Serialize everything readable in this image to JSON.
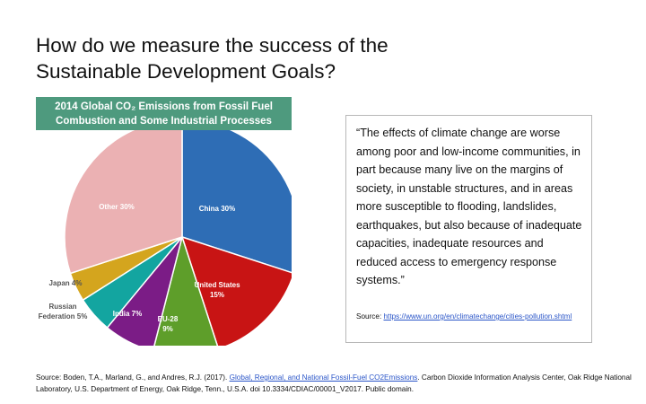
{
  "slide": {
    "title_line1": "How do we measure the success of the",
    "title_line2": "Sustainable Development Goals?"
  },
  "chart_data": {
    "type": "pie",
    "title_line1": "2014 Global CO₂ Emissions from Fossil Fuel",
    "title_line2": "Combustion and Some Industrial Processes",
    "header_color": "#4e9a7e",
    "slices": [
      {
        "label": "China",
        "value": 30,
        "text": "China 30%",
        "color": "#2e6db5"
      },
      {
        "label": "United States",
        "value": 15,
        "text": "United States 15%",
        "color": "#c81414"
      },
      {
        "label": "EU-28",
        "value": 9,
        "text": "EU-28 9%",
        "color": "#5e9e2a"
      },
      {
        "label": "India",
        "value": 7,
        "text": "India 7%",
        "color": "#7b1c86"
      },
      {
        "label": "Russian Federation",
        "value": 5,
        "text": "Russian Federation 5%",
        "color": "#13a5a0"
      },
      {
        "label": "Japan",
        "value": 4,
        "text": "Japan 4%",
        "color": "#d4a51e"
      },
      {
        "label": "Other",
        "value": 30,
        "text": "Other 30%",
        "color": "#ebb1b3"
      }
    ]
  },
  "quote": {
    "text": "“The effects of climate change are worse among poor and low-income communities, in part because many live on the margins of society, in unstable structures, and in areas more susceptible to flooding, landslides, earthquakes, but also because of inadequate capacities, inadequate resources and reduced access to emergency response systems.”",
    "source_prefix": "Source: ",
    "source_link": "https://www.un.org/en/climatechange/cities-pollution.shtml"
  },
  "footer": {
    "prefix": "Source: Boden, T.A., Marland, G., and Andres, R.J. (2017). ",
    "link": "Global, Regional, and National Fossil-Fuel CO2Emissions",
    "suffix": ". Carbon Dioxide Information Analysis Center, Oak Ridge National Laboratory, U.S. Department of Energy, Oak Ridge, Tenn., U.S.A. doi 10.3334/CDIAC/00001_V2017. Public domain."
  },
  "colors": {
    "link": "#2a55c8",
    "quote_border": "#b8b8b8"
  }
}
